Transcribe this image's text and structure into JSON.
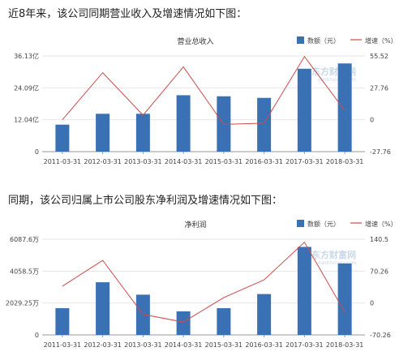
{
  "intro_texts": [
    "近8年来，该公司同期营业收入及增速情况如下图：",
    "同期，该公司归属上市公司股东净利润及增速情况如下图："
  ],
  "colors": {
    "bar": "#3a71b5",
    "line": "#d04a4a",
    "grid": "#e6e6e6"
  },
  "watermark": {
    "main": "东方财富网",
    "sub": "eastmoney.com"
  },
  "chart_data": [
    {
      "type": "bar",
      "title": "营业总收入",
      "legend": {
        "bar": "数额（元）",
        "line": "增速（%）"
      },
      "categories": [
        "2011-03-31",
        "2012-03-31",
        "2013-03-31",
        "2014-03-31",
        "2015-03-31",
        "2016-03-31",
        "2017-03-31",
        "2018-03-31"
      ],
      "series": [
        {
          "name": "数额（元）",
          "type": "bar",
          "axis": "left",
          "values": [
            10.2,
            14.3,
            14.3,
            21.3,
            20.9,
            20.3,
            31.3,
            33.3
          ]
        },
        {
          "name": "增速（%）",
          "type": "line",
          "axis": "right",
          "values": [
            0,
            41,
            4,
            46,
            -4,
            -3,
            55,
            8
          ]
        }
      ],
      "left_axis": {
        "ticks": [
          0,
          12.04,
          24.09,
          36.13
        ],
        "labels": [
          "0",
          "12.04亿",
          "24.09亿",
          "36.13亿"
        ],
        "ylim": [
          0,
          36.13
        ]
      },
      "right_axis": {
        "ticks": [
          -27.76,
          0,
          27.76,
          55.52
        ],
        "labels": [
          "-27.76",
          "0",
          "27.76",
          "55.52"
        ],
        "ylim": [
          -27.76,
          55.52
        ]
      }
    },
    {
      "type": "bar",
      "title": "净利润",
      "legend": {
        "bar": "数额（元）",
        "line": "增速（%）"
      },
      "categories": [
        "2011-03-31",
        "2012-03-31",
        "2013-03-31",
        "2014-03-31",
        "2015-03-31",
        "2016-03-31",
        "2017-03-31",
        "2018-03-31"
      ],
      "series": [
        {
          "name": "数额（元）",
          "type": "bar",
          "axis": "left",
          "values": [
            1700,
            3350,
            2560,
            1500,
            1700,
            2600,
            5600,
            4550
          ]
        },
        {
          "name": "增速（%）",
          "type": "line",
          "axis": "right",
          "values": [
            37,
            94,
            -25,
            -42,
            12,
            51,
            134,
            -20
          ]
        }
      ],
      "left_axis": {
        "ticks": [
          0,
          2029.25,
          4058.5,
          6087.6
        ],
        "labels": [
          "0",
          "2029.25万",
          "4058.5万",
          "6087.6万"
        ],
        "ylim": [
          0,
          6087.6
        ]
      },
      "right_axis": {
        "ticks": [
          -70.26,
          0,
          70.26,
          140.5
        ],
        "labels": [
          "-70.26",
          "0",
          "70.26",
          "140.5"
        ],
        "ylim": [
          -70.26,
          140.5
        ]
      }
    }
  ]
}
